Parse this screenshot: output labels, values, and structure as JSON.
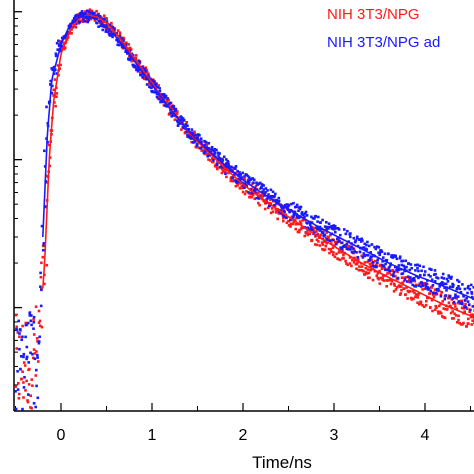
{
  "chart_data": {
    "type": "scatter",
    "title": "",
    "xlabel": "Time/ns",
    "ylabel": "",
    "xlim": [
      -0.5,
      4.6
    ],
    "ylim": [
      0.002,
      1.2
    ],
    "yscale": "log",
    "grid": false,
    "legend_position": "top-right",
    "x_ticks": [
      {
        "value": 0,
        "label": "0"
      },
      {
        "value": 1,
        "label": "1"
      },
      {
        "value": 2,
        "label": "2"
      },
      {
        "value": 3,
        "label": "3"
      },
      {
        "value": 4,
        "label": "4"
      }
    ],
    "series": [
      {
        "name": "NIH 3T3/NPG",
        "color": "#ff1a1a",
        "points": [
          [
            -0.45,
            0.004
          ],
          [
            -0.35,
            0.0045
          ],
          [
            -0.25,
            0.005
          ],
          [
            -0.18,
            0.02
          ],
          [
            -0.13,
            0.1
          ],
          [
            -0.08,
            0.25
          ],
          [
            0.0,
            0.52
          ],
          [
            0.1,
            0.75
          ],
          [
            0.2,
            0.9
          ],
          [
            0.3,
            0.95
          ],
          [
            0.4,
            0.92
          ],
          [
            0.5,
            0.84
          ],
          [
            0.6,
            0.72
          ],
          [
            0.7,
            0.6
          ],
          [
            0.8,
            0.49
          ],
          [
            1.0,
            0.33
          ],
          [
            1.2,
            0.22
          ],
          [
            1.4,
            0.155
          ],
          [
            1.6,
            0.115
          ],
          [
            1.8,
            0.088
          ],
          [
            2.0,
            0.068
          ],
          [
            2.2,
            0.055
          ],
          [
            2.5,
            0.041
          ],
          [
            2.8,
            0.031
          ],
          [
            3.0,
            0.026
          ],
          [
            3.3,
            0.02
          ],
          [
            3.6,
            0.016
          ],
          [
            3.9,
            0.013
          ],
          [
            4.2,
            0.0105
          ],
          [
            4.6,
            0.0083
          ]
        ]
      },
      {
        "name": "NIH 3T3/NPG ad",
        "color": "#1a1aff",
        "points": [
          [
            -0.45,
            0.004
          ],
          [
            -0.35,
            0.005
          ],
          [
            -0.25,
            0.0045
          ],
          [
            -0.2,
            0.03
          ],
          [
            -0.15,
            0.15
          ],
          [
            -0.1,
            0.35
          ],
          [
            0.0,
            0.6
          ],
          [
            0.1,
            0.82
          ],
          [
            0.2,
            0.92
          ],
          [
            0.3,
            0.93
          ],
          [
            0.4,
            0.88
          ],
          [
            0.5,
            0.79
          ],
          [
            0.6,
            0.68
          ],
          [
            0.7,
            0.57
          ],
          [
            0.8,
            0.47
          ],
          [
            1.0,
            0.32
          ],
          [
            1.2,
            0.22
          ],
          [
            1.4,
            0.157
          ],
          [
            1.6,
            0.118
          ],
          [
            1.8,
            0.092
          ],
          [
            2.0,
            0.073
          ],
          [
            2.2,
            0.06
          ],
          [
            2.5,
            0.046
          ],
          [
            2.8,
            0.036
          ],
          [
            3.0,
            0.031
          ],
          [
            3.3,
            0.025
          ],
          [
            3.6,
            0.02
          ],
          [
            3.9,
            0.0165
          ],
          [
            4.2,
            0.014
          ],
          [
            4.6,
            0.011
          ]
        ]
      }
    ]
  }
}
